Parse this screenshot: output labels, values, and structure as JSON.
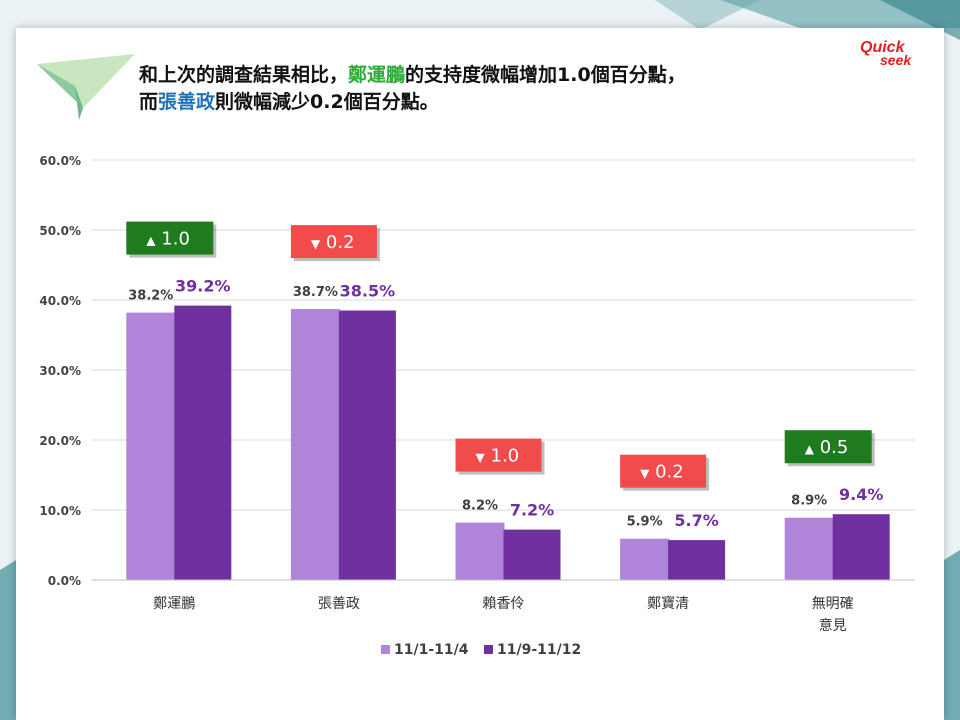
{
  "title": {
    "line1_pre": "和上次的調查結果相比，",
    "line1_name": "鄭運鵬",
    "line1_post": "的支持度微幅增加1.0個百分點，",
    "line2_pre": "而",
    "line2_name": "張善政",
    "line2_post": "則微幅減少0.2個百分點。"
  },
  "logo_text": "Quick seek",
  "colors": {
    "series1": "#b084d8",
    "series2": "#7030a0",
    "up_badge": "#1e7b1e",
    "down_badge": "#f24b4b",
    "title_green": "#2eaa3a",
    "title_blue": "#1e72b8"
  },
  "chart_data": {
    "type": "bar",
    "categories": [
      "鄭運鵬",
      "張善政",
      "賴香伶",
      "鄭寶清",
      "無明確\n意見"
    ],
    "series": [
      {
        "name": "11/1-11/4",
        "values": [
          38.2,
          38.7,
          8.2,
          5.9,
          8.9
        ],
        "labels": [
          "38.2%",
          "38.7%",
          "8.2%",
          "5.9%",
          "8.9%"
        ]
      },
      {
        "name": "11/9-11/12",
        "values": [
          39.2,
          38.5,
          7.2,
          5.7,
          9.4
        ],
        "labels": [
          "39.2%",
          "38.5%",
          "7.2%",
          "5.7%",
          "9.4%"
        ]
      }
    ],
    "changes": [
      {
        "direction": "up",
        "symbol": "▲",
        "value": "1.0"
      },
      {
        "direction": "down",
        "symbol": "▼",
        "value": "0.2"
      },
      {
        "direction": "down",
        "symbol": "▼",
        "value": "1.0"
      },
      {
        "direction": "down",
        "symbol": "▼",
        "value": "0.2"
      },
      {
        "direction": "up",
        "symbol": "▲",
        "value": "0.5"
      }
    ],
    "yticks": [
      "0.0%",
      "10.0%",
      "20.0%",
      "30.0%",
      "40.0%",
      "50.0%",
      "60.0%"
    ],
    "ylim": [
      0,
      60
    ],
    "grid": true,
    "legend_position": "bottom"
  }
}
